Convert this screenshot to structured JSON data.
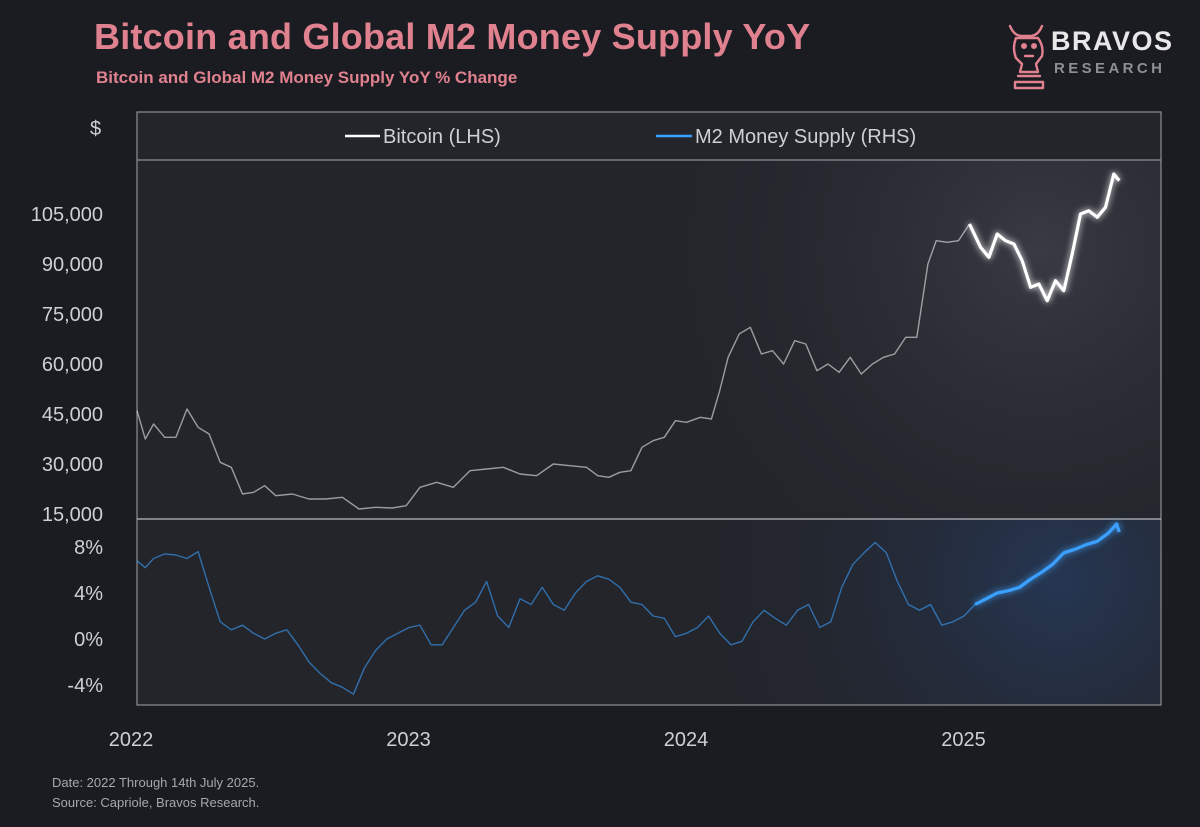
{
  "header": {
    "title": "Bitcoin and Global M2 Money Supply YoY",
    "subtitle": "Bitcoin and Global M2 Money Supply YoY % Change"
  },
  "logo": {
    "icon": "bull-knight-icon",
    "name": "BRAVOS",
    "tagline": "RESEARCH"
  },
  "footer": {
    "date_note": "Date: 2022 Through 14th July 2025.",
    "source_note": "Source: Capriole, Bravos Research."
  },
  "colors": {
    "background": "#1b1c21",
    "title": "#e0818f",
    "bitcoin": "#ffffff",
    "m2": "#3aa0ff"
  },
  "chart_data": [
    {
      "type": "line",
      "panel": "top",
      "unit_label": "$",
      "ylim": [
        15000,
        120000
      ],
      "yticks": [
        15000,
        30000,
        45000,
        60000,
        75000,
        90000,
        105000
      ],
      "ytick_labels": [
        "15,000",
        "30,000",
        "45,000",
        "60,000",
        "75,000",
        "90,000",
        "105,000"
      ],
      "legend_position": "top-center",
      "series": [
        {
          "name": "Bitcoin (LHS)",
          "x": [
            2022.0,
            2022.03,
            2022.06,
            2022.1,
            2022.14,
            2022.18,
            2022.22,
            2022.26,
            2022.3,
            2022.34,
            2022.38,
            2022.42,
            2022.46,
            2022.5,
            2022.56,
            2022.62,
            2022.68,
            2022.74,
            2022.8,
            2022.86,
            2022.92,
            2022.97,
            2023.02,
            2023.08,
            2023.14,
            2023.2,
            2023.26,
            2023.32,
            2023.38,
            2023.44,
            2023.5,
            2023.56,
            2023.62,
            2023.66,
            2023.7,
            2023.74,
            2023.78,
            2023.82,
            2023.86,
            2023.9,
            2023.94,
            2023.98,
            2024.03,
            2024.07,
            2024.1,
            2024.13,
            2024.17,
            2024.21,
            2024.25,
            2024.29,
            2024.33,
            2024.37,
            2024.41,
            2024.45,
            2024.49,
            2024.53,
            2024.57,
            2024.61,
            2024.65,
            2024.69,
            2024.73,
            2024.77,
            2024.81,
            2024.85,
            2024.88,
            2024.92,
            2024.96,
            2025.0,
            2025.04,
            2025.07,
            2025.1,
            2025.13,
            2025.16,
            2025.19,
            2025.22,
            2025.25,
            2025.28,
            2025.31,
            2025.34,
            2025.37,
            2025.4,
            2025.43,
            2025.46,
            2025.49,
            2025.52,
            2025.54
          ],
          "values": [
            46000,
            37500,
            42000,
            38000,
            38000,
            46500,
            41000,
            39000,
            30500,
            29000,
            21000,
            21500,
            23500,
            20500,
            21000,
            19500,
            19500,
            20000,
            16500,
            17000,
            16800,
            17500,
            23000,
            24500,
            23000,
            28000,
            28500,
            29000,
            27000,
            26500,
            30000,
            29500,
            29000,
            26500,
            26000,
            27500,
            28000,
            35000,
            37000,
            38000,
            43000,
            42500,
            44000,
            43500,
            52000,
            62000,
            69000,
            71000,
            63000,
            64000,
            60000,
            67000,
            66000,
            58000,
            60000,
            57500,
            62000,
            57000,
            60000,
            62000,
            63000,
            68000,
            68000,
            90000,
            97000,
            96500,
            97000,
            102000,
            95000,
            92000,
            99000,
            97000,
            96000,
            91000,
            83000,
            84000,
            79000,
            85000,
            82000,
            93000,
            105000,
            106000,
            104000,
            107000,
            117000,
            115000
          ]
        }
      ]
    },
    {
      "type": "line",
      "panel": "bottom",
      "ylim": [
        -5.5,
        9.5
      ],
      "yticks": [
        -4,
        0,
        4,
        8
      ],
      "ytick_labels": [
        "-4%",
        "0%",
        "4%",
        "8%"
      ],
      "x_tick_values": [
        2022,
        2023,
        2024,
        2025
      ],
      "x_tick_labels": [
        "2022",
        "2023",
        "2024",
        "2025"
      ],
      "xlim": [
        2022.0,
        2025.65
      ],
      "series": [
        {
          "name": "M2 Money Supply (RHS)",
          "x": [
            2022.0,
            2022.03,
            2022.06,
            2022.1,
            2022.14,
            2022.18,
            2022.22,
            2022.26,
            2022.3,
            2022.34,
            2022.38,
            2022.42,
            2022.46,
            2022.5,
            2022.54,
            2022.58,
            2022.62,
            2022.66,
            2022.7,
            2022.74,
            2022.78,
            2022.82,
            2022.86,
            2022.9,
            2022.94,
            2022.98,
            2023.02,
            2023.06,
            2023.1,
            2023.14,
            2023.18,
            2023.22,
            2023.26,
            2023.3,
            2023.34,
            2023.38,
            2023.42,
            2023.46,
            2023.5,
            2023.54,
            2023.58,
            2023.62,
            2023.66,
            2023.7,
            2023.74,
            2023.78,
            2023.82,
            2023.86,
            2023.9,
            2023.94,
            2023.98,
            2024.02,
            2024.06,
            2024.1,
            2024.14,
            2024.18,
            2024.22,
            2024.26,
            2024.3,
            2024.34,
            2024.38,
            2024.42,
            2024.46,
            2024.5,
            2024.54,
            2024.58,
            2024.62,
            2024.66,
            2024.7,
            2024.74,
            2024.78,
            2024.82,
            2024.86,
            2024.9,
            2024.94,
            2024.98,
            2025.02,
            2025.06,
            2025.1,
            2025.14,
            2025.18,
            2025.22,
            2025.26,
            2025.3,
            2025.34,
            2025.38,
            2025.42,
            2025.46,
            2025.5,
            2025.53,
            2025.54
          ],
          "values": [
            6.8,
            6.2,
            7.0,
            7.4,
            7.3,
            7.0,
            7.6,
            4.5,
            1.5,
            0.8,
            1.2,
            0.5,
            0.0,
            0.5,
            0.8,
            -0.5,
            -2.0,
            -3.0,
            -3.8,
            -4.2,
            -4.8,
            -2.5,
            -1.0,
            0.0,
            0.5,
            1.0,
            1.2,
            -0.5,
            -0.5,
            1.0,
            2.5,
            3.2,
            5.0,
            2.0,
            1.0,
            3.5,
            3.0,
            4.5,
            3.0,
            2.5,
            4.0,
            5.0,
            5.5,
            5.2,
            4.5,
            3.2,
            3.0,
            2.0,
            1.8,
            0.2,
            0.5,
            1.0,
            2.0,
            0.5,
            -0.5,
            -0.2,
            1.5,
            2.5,
            1.8,
            1.2,
            2.5,
            3.0,
            1.0,
            1.5,
            4.5,
            6.5,
            7.5,
            8.4,
            7.5,
            5.0,
            3.0,
            2.5,
            3.0,
            1.2,
            1.5,
            2.0,
            3.0,
            3.5,
            4.0,
            4.2,
            4.5,
            5.2,
            5.8,
            6.5,
            7.5,
            7.8,
            8.2,
            8.5,
            9.2,
            10.0,
            9.3
          ]
        }
      ]
    }
  ]
}
